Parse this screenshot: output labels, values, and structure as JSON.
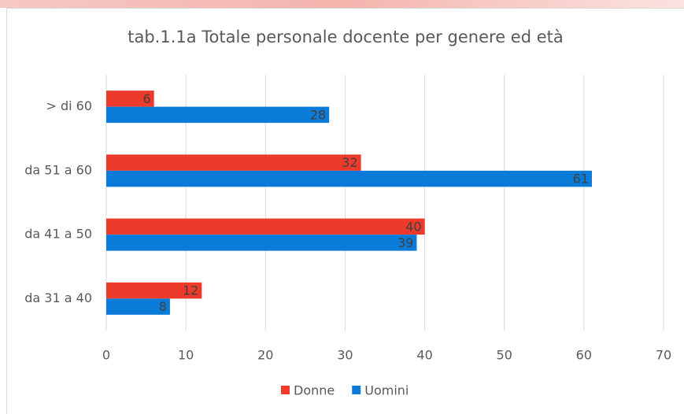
{
  "chart_data": {
    "type": "bar",
    "orientation": "horizontal",
    "title": "tab.1.1a Totale personale docente per genere ed età",
    "categories": [
      "> di 60",
      "da 51 a 60",
      "da 41 a 50",
      "da 31 a 40"
    ],
    "series": [
      {
        "name": "Donne",
        "color": "#ee3a2b",
        "values": [
          6,
          32,
          40,
          12
        ]
      },
      {
        "name": "Uomini",
        "color": "#0b7bd9",
        "values": [
          28,
          61,
          39,
          8
        ]
      }
    ],
    "xlim": [
      0,
      70
    ],
    "xticks": [
      0,
      10,
      20,
      30,
      40,
      50,
      60,
      70
    ],
    "grid": true,
    "legend": "bottom"
  }
}
